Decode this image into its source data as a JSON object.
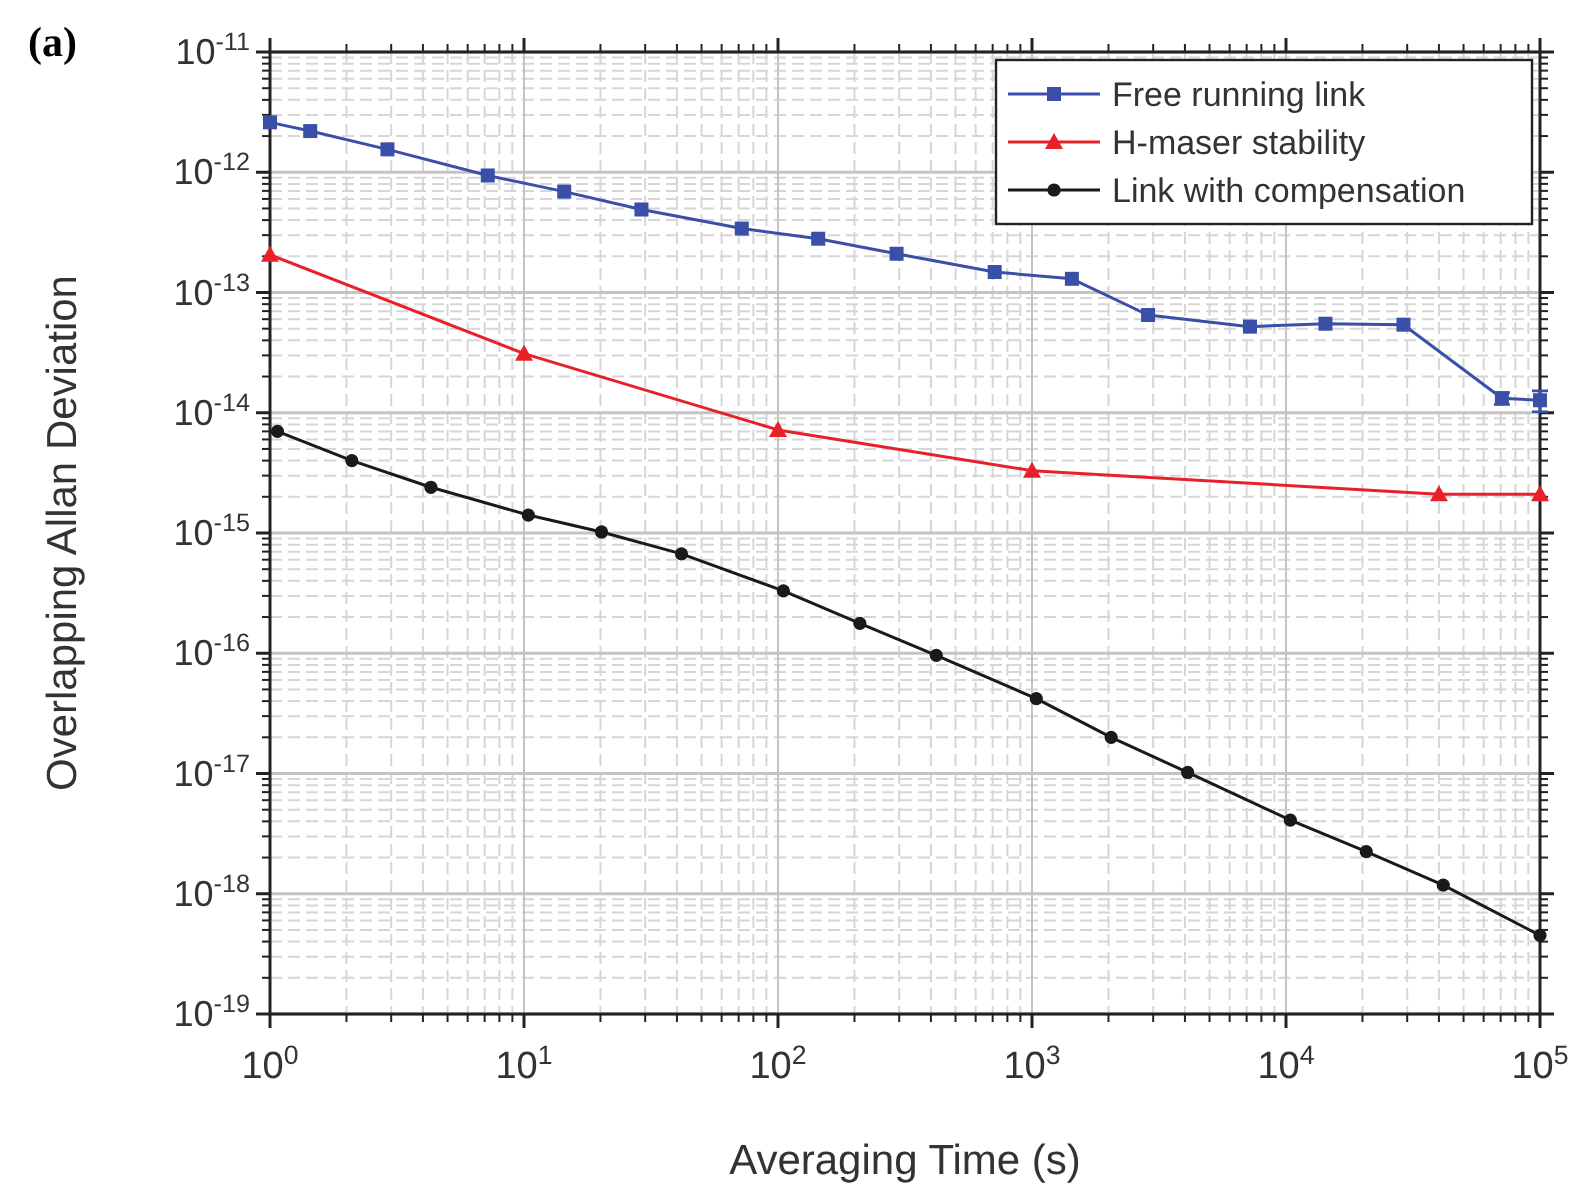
{
  "chart_data": {
    "type": "line",
    "xlabel": "Averaging Time (s)",
    "ylabel": "Overlapping Allan Deviation",
    "annotations": [
      "(a)"
    ],
    "log": "xy",
    "grid": true,
    "legend": "top right",
    "line_style": "solid",
    "xlim": [
      1,
      100000
    ],
    "ylim": [
      1e-19,
      1e-11
    ],
    "xticks": [
      {
        "value": 1,
        "label": "10$^{0}$"
      },
      {
        "value": 10,
        "label": "10$^{1}$"
      },
      {
        "value": 100,
        "label": "10$^{2}$"
      },
      {
        "value": 1000,
        "label": "10$^{3}$"
      },
      {
        "value": 10000,
        "label": "10$^{4}$"
      },
      {
        "value": 100000,
        "label": "10$^{5}$"
      }
    ],
    "yticks": [
      {
        "value": 1e-19,
        "label": "10$^{-19}$"
      },
      {
        "value": 1e-18,
        "label": "10$^{-18}$"
      },
      {
        "value": 1e-17,
        "label": "10$^{-17}$"
      },
      {
        "value": 1e-16,
        "label": "10$^{-16}$"
      },
      {
        "value": 1e-15,
        "label": "10$^{-15}$"
      },
      {
        "value": 1e-14,
        "label": "10$^{-14}$"
      },
      {
        "value": 1e-13,
        "label": "10$^{-13}$"
      },
      {
        "value": 1e-12,
        "label": "10$^{-12}$"
      },
      {
        "value": 1e-11,
        "label": "10$^{-11}$"
      }
    ],
    "series": [
      {
        "name": "Free running link",
        "color": "#3a4fa8",
        "marker": "square",
        "x": [
          1,
          1.44,
          2.9,
          7.2,
          14.4,
          29,
          72,
          144,
          293,
          713,
          1436,
          2864,
          7215,
          14300,
          29000,
          70800,
          100000
        ],
        "values": [
          2.6e-12,
          2.2e-12,
          1.55e-12,
          9.4e-13,
          6.9e-13,
          4.9e-13,
          3.4e-13,
          2.8e-13,
          2.1e-13,
          1.48e-13,
          1.3e-13,
          6.5e-14,
          5.2e-14,
          5.5e-14,
          5.4e-14,
          1.32e-14,
          1.27e-14
        ],
        "errors": [
          null,
          null,
          null,
          null,
          null,
          null,
          null,
          null,
          null,
          null,
          null,
          null,
          null,
          null,
          null,
          1.5e-15,
          2.5e-15
        ]
      },
      {
        "name": "H-maser stability",
        "color": "#e8202a",
        "marker": "triangle",
        "x": [
          1,
          10,
          100,
          1000,
          40000,
          100000
        ],
        "values": [
          2.06e-13,
          3.1e-14,
          7.2e-15,
          3.3e-15,
          2.1e-15,
          2.1e-15
        ]
      },
      {
        "name": "Link with compensation",
        "color": "#1a1a1a",
        "marker": "circle",
        "x": [
          1.07,
          2.1,
          4.3,
          10.4,
          20.2,
          41.7,
          105,
          210,
          420,
          1040,
          2050,
          4100,
          10400,
          20700,
          41600,
          100000
        ],
        "values": [
          7e-15,
          4e-15,
          2.4e-15,
          1.41e-15,
          1.02e-15,
          6.7e-16,
          3.3e-16,
          1.77e-16,
          9.6e-17,
          4.2e-17,
          2e-17,
          1.02e-17,
          4.1e-18,
          2.24e-18,
          1.18e-18,
          4.5e-19
        ]
      }
    ]
  }
}
